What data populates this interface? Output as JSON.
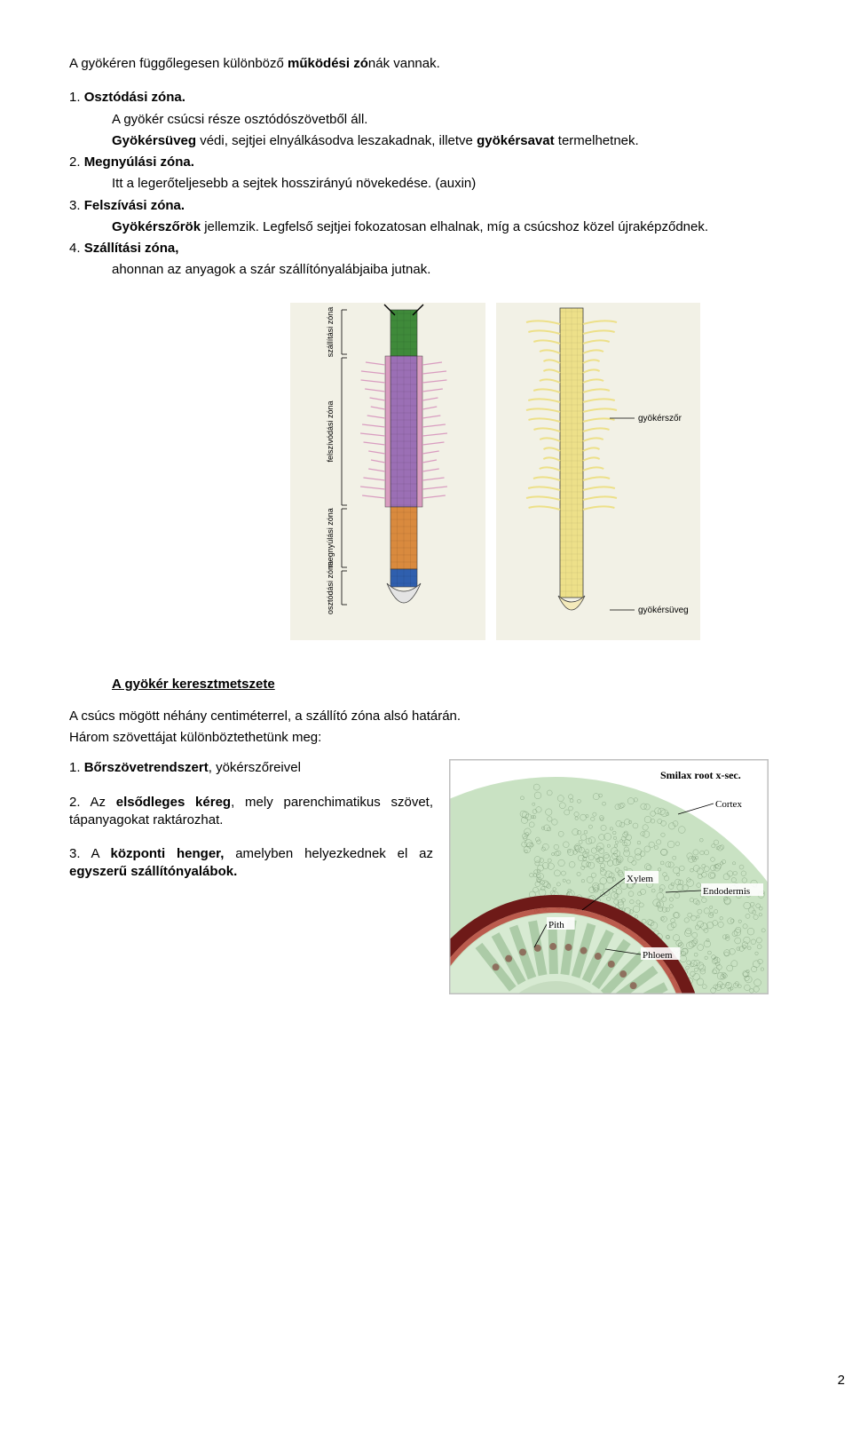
{
  "intro": {
    "line1_pre": "A gyökéren függőlegesen különböző ",
    "line1_bold": "működési zó",
    "line1_post": "nák vannak."
  },
  "items": [
    {
      "num": "1. ",
      "title": "Osztódási zóna.",
      "body_pre": "A gyökér csúcsi része osztódószövetből áll.",
      "body2_pre": "Gyökérsüveg ",
      "body2_mid": "védi, sejtjei elnyálkásodva leszakadnak, illetve ",
      "body2_bold": "gyökérsavat",
      "body2_post": " termelhetnek."
    },
    {
      "num": "2. ",
      "title": "Megnyúlási zóna.",
      "body": "Itt a legerőteljesebb a sejtek hosszirányú növekedése. (auxin)"
    },
    {
      "num": "3. ",
      "title": "Felszívási zóna.",
      "body_bold": "Gyökérszőrök",
      "body_post": " jellemzik. Legfelső sejtjei fokozatosan elhalnak, míg a csúcshoz közel újraképződnek."
    },
    {
      "num": "4. ",
      "title": "Szállítási zóna,",
      "body": "ahonnan az anyagok a szár szállítónyalábjaiba jutnak."
    }
  ],
  "fig1": {
    "labels": {
      "szallitasi": "szállítási\nzóna",
      "felszivodasi": "felszívódási zóna",
      "megnyulasi": "megnyúlási\nzóna",
      "osztodasi": "osztódási\nzóna",
      "gyokerszor": "gyökérszőr",
      "gyokersuveg": "gyökérsüveg"
    },
    "colors": {
      "green": "#3f8a3a",
      "purple": "#9b6fb5",
      "pink": "#d99cc0",
      "orange": "#d98a3e",
      "blue": "#2f5fae",
      "cap": "#e4e4e4",
      "outline": "#3b3b3b",
      "cream": "#f4eabb",
      "root2": "#ede089",
      "bg": "#f2f1e6"
    }
  },
  "cross": {
    "heading": "A gyökér keresztmetszete",
    "p1": "A csúcs mögött néhány centiméterrel, a szállító zóna alsó határán.",
    "p2": "Három szövettájat különböztethetünk meg:",
    "list": [
      {
        "num": "1. ",
        "bold": "Bőrszövetrendszert",
        "post": ", yökérszőreivel"
      },
      {
        "num": "2. ",
        "pre": "Az ",
        "bold": "elsődleges kéreg",
        "post": ", mely parenchimatikus szövet, tápanyagokat raktározhat."
      },
      {
        "num": "3. ",
        "pre": "A ",
        "bold": "központi henger,",
        "post": " amelyben helyezkednek el az ",
        "bold2": "egyszerű szállítónyalábok."
      }
    ]
  },
  "micro": {
    "title": "Smilax root x-sec.",
    "labels": {
      "cortex": "Cortex",
      "xylem": "Xylem",
      "pith": "Pith",
      "endodermis": "Endodermis",
      "phloem": "Phloem"
    },
    "colors": {
      "border": "#bfbfbf",
      "title_bg": "#ffffff",
      "cortex": "#c9e2c3",
      "ring_dark": "#6e1a18",
      "ring_light": "#b83a30",
      "inner": "#d7ead2",
      "pith": "#c6dcc0",
      "xylem": "#9abf96",
      "phloem": "#7a332d",
      "line": "#000000"
    }
  },
  "page_number": "2"
}
